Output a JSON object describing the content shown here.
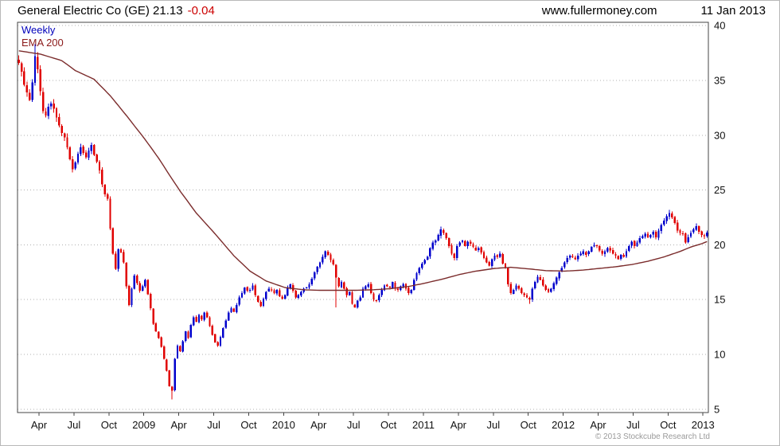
{
  "header": {
    "title": "General Electric Co (GE) 21.13",
    "change": "-0.04",
    "website": "www.fullermoney.com",
    "date": "11 Jan 2013"
  },
  "chart": {
    "legend_timeframe": "Weekly",
    "legend_ema": "EMA 200",
    "copyright": "© 2013 Stockcube Research Ltd",
    "colors": {
      "up": "#0000cc",
      "down": "#e00000",
      "ema": "#7b2c2c",
      "grid": "#b0b0b0",
      "border": "#444444",
      "axis_text": "#111111"
    }
  },
  "chart_data": {
    "type": "candlestick",
    "title": "General Electric Co (GE) weekly candles with 200-week EMA",
    "timeframe": "weekly",
    "ylim": [
      4.7,
      40.3
    ],
    "y_ticks": [
      5,
      10,
      15,
      20,
      25,
      30,
      35,
      40
    ],
    "x_ticks": [
      {
        "label": "Apr",
        "week": 8
      },
      {
        "label": "Jul",
        "week": 21
      },
      {
        "label": "Oct",
        "week": 34
      },
      {
        "label": "2009",
        "week": 47
      },
      {
        "label": "Apr",
        "week": 60
      },
      {
        "label": "Jul",
        "week": 73
      },
      {
        "label": "Oct",
        "week": 86
      },
      {
        "label": "2010",
        "week": 99
      },
      {
        "label": "Apr",
        "week": 112
      },
      {
        "label": "Jul",
        "week": 125
      },
      {
        "label": "Oct",
        "week": 138
      },
      {
        "label": "2011",
        "week": 151
      },
      {
        "label": "Apr",
        "week": 164
      },
      {
        "label": "Jul",
        "week": 177
      },
      {
        "label": "Oct",
        "week": 190
      },
      {
        "label": "2012",
        "week": 203
      },
      {
        "label": "Apr",
        "week": 216
      },
      {
        "label": "Jul",
        "week": 229
      },
      {
        "label": "Oct",
        "week": 242
      },
      {
        "label": "2013",
        "week": 255
      }
    ],
    "first_open": 36.9,
    "closes": [
      36.6,
      35.8,
      34.6,
      33.9,
      33.2,
      34.8,
      37.2,
      36.0,
      34.0,
      32.2,
      31.8,
      32.6,
      32.9,
      32.4,
      31.6,
      30.9,
      30.2,
      29.8,
      28.9,
      27.8,
      26.9,
      27.5,
      28.3,
      28.9,
      28.4,
      28.0,
      28.6,
      29.1,
      28.2,
      27.6,
      26.8,
      25.5,
      24.6,
      24.2,
      21.5,
      19.2,
      17.8,
      19.6,
      19.3,
      18.4,
      16.2,
      14.5,
      16.0,
      17.2,
      16.5,
      15.8,
      16.2,
      16.8,
      15.5,
      14.2,
      12.8,
      12.1,
      11.5,
      10.7,
      9.6,
      8.5,
      7.1,
      6.7,
      9.6,
      10.8,
      10.3,
      11.2,
      12.1,
      11.5,
      12.7,
      13.4,
      13.0,
      13.6,
      13.2,
      13.8,
      13.4,
      12.6,
      11.8,
      11.1,
      10.8,
      11.6,
      12.4,
      13.1,
      13.8,
      14.2,
      13.9,
      14.5,
      15.2,
      15.6,
      16.1,
      15.8,
      15.9,
      16.3,
      15.4,
      14.8,
      14.4,
      15.1,
      15.7,
      16.0,
      15.9,
      15.6,
      15.9,
      15.3,
      15.1,
      15.4,
      16.1,
      16.4,
      15.8,
      15.2,
      15.4,
      15.7,
      16.0,
      16.1,
      16.4,
      16.9,
      17.5,
      18.0,
      18.4,
      18.9,
      19.4,
      19.1,
      18.6,
      18.2,
      17.0,
      16.2,
      16.6,
      16.0,
      15.4,
      15.7,
      14.6,
      14.3,
      14.9,
      15.2,
      16.0,
      16.2,
      16.4,
      15.6,
      15.0,
      14.9,
      15.4,
      15.9,
      16.3,
      16.2,
      16.1,
      16.6,
      16.0,
      15.9,
      16.2,
      16.4,
      16.0,
      15.6,
      15.9,
      16.8,
      17.4,
      17.9,
      18.3,
      18.6,
      18.9,
      19.7,
      20.2,
      20.4,
      20.9,
      21.4,
      21.1,
      20.6,
      19.9,
      19.2,
      18.8,
      19.9,
      20.2,
      20.4,
      19.9,
      20.3,
      20.1,
      19.8,
      19.5,
      19.7,
      19.3,
      18.8,
      18.4,
      18.1,
      18.7,
      19.0,
      18.9,
      19.2,
      18.3,
      17.9,
      16.4,
      15.6,
      15.9,
      16.3,
      16.0,
      15.6,
      15.4,
      15.2,
      15.0,
      16.0,
      16.6,
      17.1,
      16.8,
      16.3,
      15.9,
      15.7,
      16.0,
      16.5,
      17.0,
      17.5,
      17.9,
      18.4,
      18.8,
      19.0,
      18.9,
      18.7,
      19.0,
      19.2,
      19.4,
      19.1,
      19.4,
      19.8,
      20.0,
      19.9,
      19.5,
      19.2,
      19.4,
      19.7,
      19.5,
      19.2,
      19.0,
      18.7,
      19.1,
      18.9,
      19.4,
      19.9,
      20.3,
      19.9,
      20.2,
      20.6,
      20.8,
      21.0,
      20.7,
      20.9,
      21.2,
      20.7,
      21.3,
      21.8,
      22.2,
      22.6,
      22.9,
      22.5,
      22.0,
      21.3,
      21.1,
      21.0,
      20.2,
      20.7,
      21.1,
      21.4,
      21.7,
      21.2,
      20.9,
      20.8,
      21.13
    ],
    "wick_overrides": {
      "6": {
        "h": 38.3
      },
      "57": {
        "l": 5.9
      },
      "118": {
        "l": 14.3
      },
      "157": {
        "h": 21.65
      },
      "190": {
        "l": 14.6
      },
      "242": {
        "h": 23.2
      }
    },
    "ema_anchors": [
      [
        0,
        37.7
      ],
      [
        8,
        37.4
      ],
      [
        16,
        36.8
      ],
      [
        21,
        35.9
      ],
      [
        28,
        35.1
      ],
      [
        34,
        33.6
      ],
      [
        40,
        31.8
      ],
      [
        47,
        29.6
      ],
      [
        52,
        27.9
      ],
      [
        57,
        26.0
      ],
      [
        60,
        24.9
      ],
      [
        66,
        22.9
      ],
      [
        73,
        21.0
      ],
      [
        80,
        19.0
      ],
      [
        86,
        17.6
      ],
      [
        92,
        16.7
      ],
      [
        99,
        16.1
      ],
      [
        106,
        15.9
      ],
      [
        112,
        15.85
      ],
      [
        118,
        15.85
      ],
      [
        125,
        15.85
      ],
      [
        132,
        15.9
      ],
      [
        138,
        16.0
      ],
      [
        145,
        16.2
      ],
      [
        151,
        16.5
      ],
      [
        158,
        16.9
      ],
      [
        164,
        17.3
      ],
      [
        170,
        17.6
      ],
      [
        177,
        17.85
      ],
      [
        183,
        17.95
      ],
      [
        190,
        17.8
      ],
      [
        196,
        17.65
      ],
      [
        203,
        17.6
      ],
      [
        210,
        17.7
      ],
      [
        216,
        17.85
      ],
      [
        222,
        18.0
      ],
      [
        228,
        18.2
      ],
      [
        234,
        18.5
      ],
      [
        240,
        18.9
      ],
      [
        246,
        19.4
      ],
      [
        250,
        19.8
      ],
      [
        254,
        20.1
      ],
      [
        256,
        20.3
      ]
    ],
    "last_price": 21.13
  }
}
